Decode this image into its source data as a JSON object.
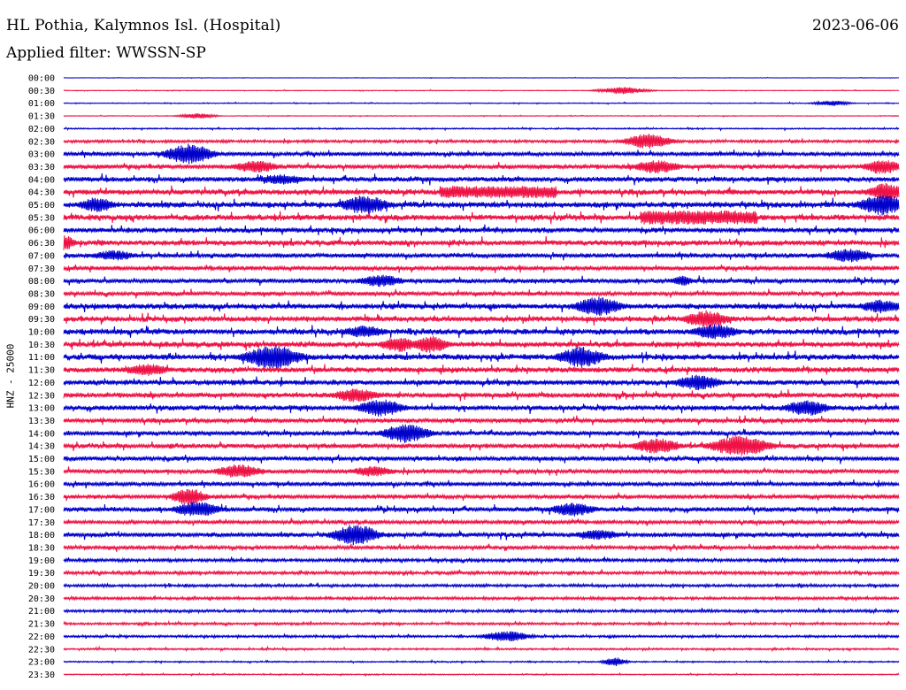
{
  "header": {
    "station": "HL Pothia, Kalymnos Isl. (Hospital)",
    "date": "2023-06-06",
    "filter": "Applied filter: WWSSN-SP"
  },
  "chart_data": {
    "type": "line",
    "title": "HL Pothia, Kalymnos Isl. (Hospital)",
    "ylabel": "HNZ - 25000",
    "row_labels": [
      "00:00",
      "00:30",
      "01:00",
      "01:30",
      "02:00",
      "02:30",
      "03:00",
      "03:30",
      "04:00",
      "04:30",
      "05:00",
      "05:30",
      "06:00",
      "06:30",
      "07:00",
      "07:30",
      "08:00",
      "08:30",
      "09:00",
      "09:30",
      "10:00",
      "10:30",
      "11:00",
      "11:30",
      "12:00",
      "12:30",
      "13:00",
      "13:30",
      "14:00",
      "14:30",
      "15:00",
      "15:30",
      "16:00",
      "16:30",
      "17:00",
      "17:30",
      "18:00",
      "18:30",
      "19:00",
      "19:30",
      "20:00",
      "20:30",
      "21:00",
      "21:30",
      "22:00",
      "22:30",
      "23:00",
      "23:30"
    ],
    "trace_colors": [
      "#0000cc",
      "#ee1144"
    ],
    "noise_level": [
      0.2,
      0.3,
      0.4,
      0.3,
      0.6,
      1.2,
      1.8,
      2.0,
      2.2,
      2.4,
      2.6,
      2.6,
      2.2,
      2.4,
      2.0,
      1.9,
      2.0,
      1.8,
      2.4,
      2.4,
      2.6,
      2.4,
      2.6,
      2.4,
      2.4,
      2.2,
      2.2,
      2.0,
      2.0,
      2.0,
      2.0,
      1.8,
      1.8,
      1.8,
      2.0,
      1.6,
      2.0,
      1.6,
      1.4,
      1.4,
      1.2,
      1.2,
      1.2,
      1.0,
      1.0,
      0.8,
      0.6,
      0.5
    ],
    "events": [
      {
        "row": 1,
        "pos": 0.67,
        "amp": 4,
        "w": 0.02
      },
      {
        "row": 2,
        "pos": 0.92,
        "amp": 3,
        "w": 0.015
      },
      {
        "row": 3,
        "pos": 0.16,
        "amp": 3,
        "w": 0.015
      },
      {
        "row": 5,
        "pos": 0.7,
        "amp": 9,
        "w": 0.02
      },
      {
        "row": 6,
        "pos": 0.15,
        "amp": 12,
        "w": 0.02
      },
      {
        "row": 7,
        "pos": 0.23,
        "amp": 7,
        "w": 0.02
      },
      {
        "row": 7,
        "pos": 0.71,
        "amp": 8,
        "w": 0.02
      },
      {
        "row": 7,
        "pos": 0.98,
        "amp": 9,
        "w": 0.015
      },
      {
        "row": 8,
        "pos": 0.26,
        "amp": 6,
        "w": 0.02
      },
      {
        "row": 9,
        "pos": 0.52,
        "amp": 7,
        "w": 0.14,
        "flat": true
      },
      {
        "row": 9,
        "pos": 0.985,
        "amp": 11,
        "w": 0.015
      },
      {
        "row": 10,
        "pos": 0.04,
        "amp": 9,
        "w": 0.015
      },
      {
        "row": 10,
        "pos": 0.36,
        "amp": 11,
        "w": 0.02
      },
      {
        "row": 10,
        "pos": 0.98,
        "amp": 12,
        "w": 0.02
      },
      {
        "row": 11,
        "pos": 0.76,
        "amp": 8,
        "w": 0.14,
        "flat": true
      },
      {
        "row": 13,
        "pos": 0.0,
        "amp": 9,
        "w": 0.01
      },
      {
        "row": 14,
        "pos": 0.06,
        "amp": 6,
        "w": 0.02
      },
      {
        "row": 14,
        "pos": 0.94,
        "amp": 8,
        "w": 0.02
      },
      {
        "row": 16,
        "pos": 0.38,
        "amp": 7,
        "w": 0.02
      },
      {
        "row": 16,
        "pos": 0.74,
        "amp": 6,
        "w": 0.01
      },
      {
        "row": 18,
        "pos": 0.64,
        "amp": 11,
        "w": 0.02
      },
      {
        "row": 18,
        "pos": 0.98,
        "amp": 8,
        "w": 0.02
      },
      {
        "row": 19,
        "pos": 0.77,
        "amp": 10,
        "w": 0.02
      },
      {
        "row": 20,
        "pos": 0.36,
        "amp": 7,
        "w": 0.02
      },
      {
        "row": 20,
        "pos": 0.78,
        "amp": 9,
        "w": 0.02
      },
      {
        "row": 21,
        "pos": 0.4,
        "amp": 9,
        "w": 0.015
      },
      {
        "row": 21,
        "pos": 0.44,
        "amp": 10,
        "w": 0.015
      },
      {
        "row": 22,
        "pos": 0.25,
        "amp": 14,
        "w": 0.025
      },
      {
        "row": 22,
        "pos": 0.62,
        "amp": 12,
        "w": 0.02
      },
      {
        "row": 23,
        "pos": 0.1,
        "amp": 7,
        "w": 0.02
      },
      {
        "row": 24,
        "pos": 0.76,
        "amp": 9,
        "w": 0.02
      },
      {
        "row": 25,
        "pos": 0.35,
        "amp": 8,
        "w": 0.02
      },
      {
        "row": 26,
        "pos": 0.38,
        "amp": 10,
        "w": 0.02
      },
      {
        "row": 26,
        "pos": 0.89,
        "amp": 9,
        "w": 0.02
      },
      {
        "row": 28,
        "pos": 0.41,
        "amp": 11,
        "w": 0.02
      },
      {
        "row": 29,
        "pos": 0.71,
        "amp": 9,
        "w": 0.02
      },
      {
        "row": 29,
        "pos": 0.81,
        "amp": 12,
        "w": 0.025
      },
      {
        "row": 31,
        "pos": 0.21,
        "amp": 8,
        "w": 0.02
      },
      {
        "row": 31,
        "pos": 0.37,
        "amp": 6,
        "w": 0.02
      },
      {
        "row": 33,
        "pos": 0.15,
        "amp": 10,
        "w": 0.015
      },
      {
        "row": 34,
        "pos": 0.16,
        "amp": 9,
        "w": 0.02
      },
      {
        "row": 34,
        "pos": 0.61,
        "amp": 8,
        "w": 0.02
      },
      {
        "row": 36,
        "pos": 0.35,
        "amp": 12,
        "w": 0.02
      },
      {
        "row": 36,
        "pos": 0.64,
        "amp": 6,
        "w": 0.02
      },
      {
        "row": 44,
        "pos": 0.53,
        "amp": 6,
        "w": 0.02
      },
      {
        "row": 46,
        "pos": 0.66,
        "amp": 5,
        "w": 0.01
      }
    ]
  }
}
